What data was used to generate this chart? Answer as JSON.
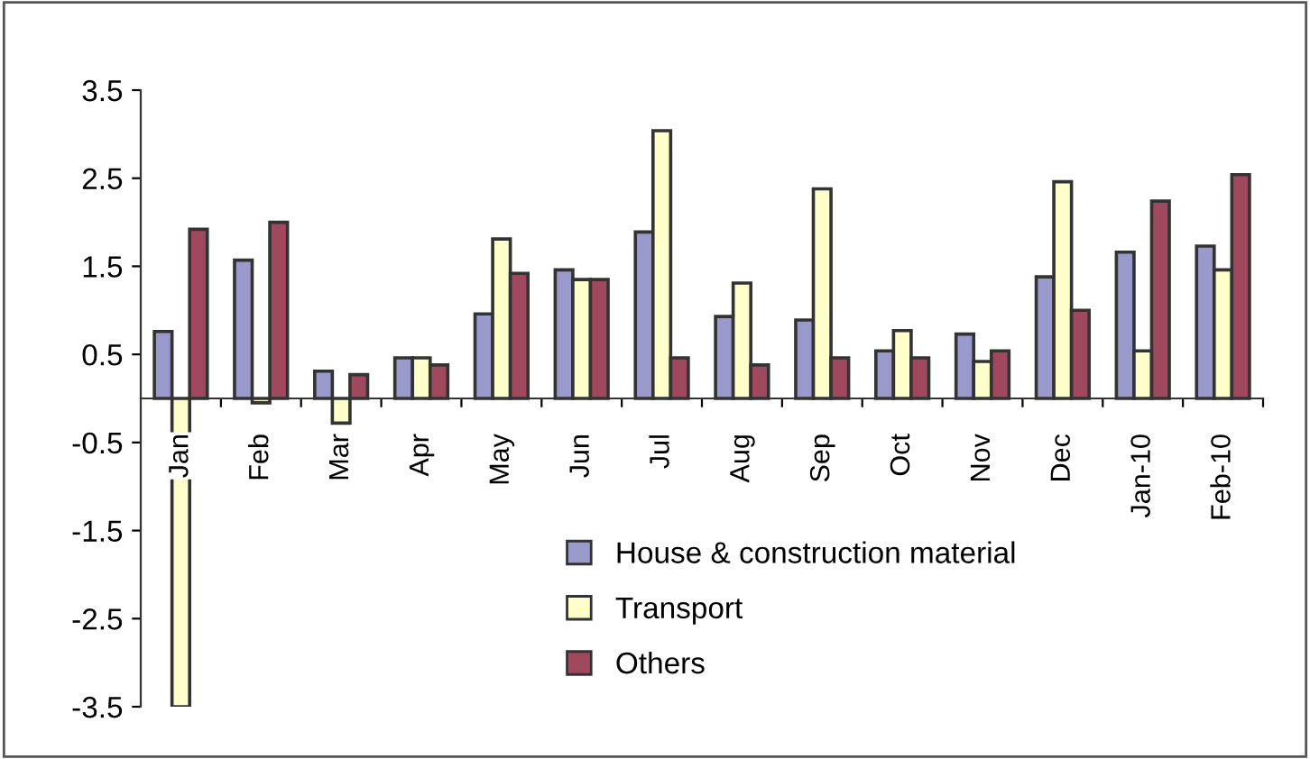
{
  "chart_data": {
    "type": "bar",
    "categories": [
      "Jan",
      "Feb",
      "Mar",
      "Apr",
      "May",
      "Jun",
      "Jul",
      "Aug",
      "Sep",
      "Oct",
      "Nov",
      "Dec",
      "Jan-10",
      "Feb-10"
    ],
    "series": [
      {
        "name": "House & construction material",
        "color": "#9999cc",
        "values": [
          0.76,
          1.57,
          0.31,
          0.46,
          0.96,
          1.46,
          1.89,
          0.93,
          0.89,
          0.54,
          0.73,
          1.38,
          1.66,
          1.73
        ]
      },
      {
        "name": "Transport",
        "color": "#ffffcc",
        "values": [
          -3.5,
          -0.05,
          -0.28,
          0.46,
          1.81,
          1.35,
          3.04,
          1.31,
          2.38,
          0.77,
          0.42,
          2.46,
          0.54,
          1.46
        ]
      },
      {
        "name": "Others",
        "color": "#a0485e",
        "values": [
          1.92,
          2.0,
          0.27,
          0.38,
          1.42,
          1.35,
          0.46,
          0.38,
          0.46,
          0.46,
          0.54,
          1.0,
          2.24,
          2.54
        ]
      }
    ],
    "ylim": [
      -3.5,
      3.5
    ],
    "yticks": [
      -3.5,
      -2.5,
      -1.5,
      -0.5,
      0.5,
      1.5,
      2.5,
      3.5
    ],
    "grid": false,
    "legend": "bottom"
  }
}
